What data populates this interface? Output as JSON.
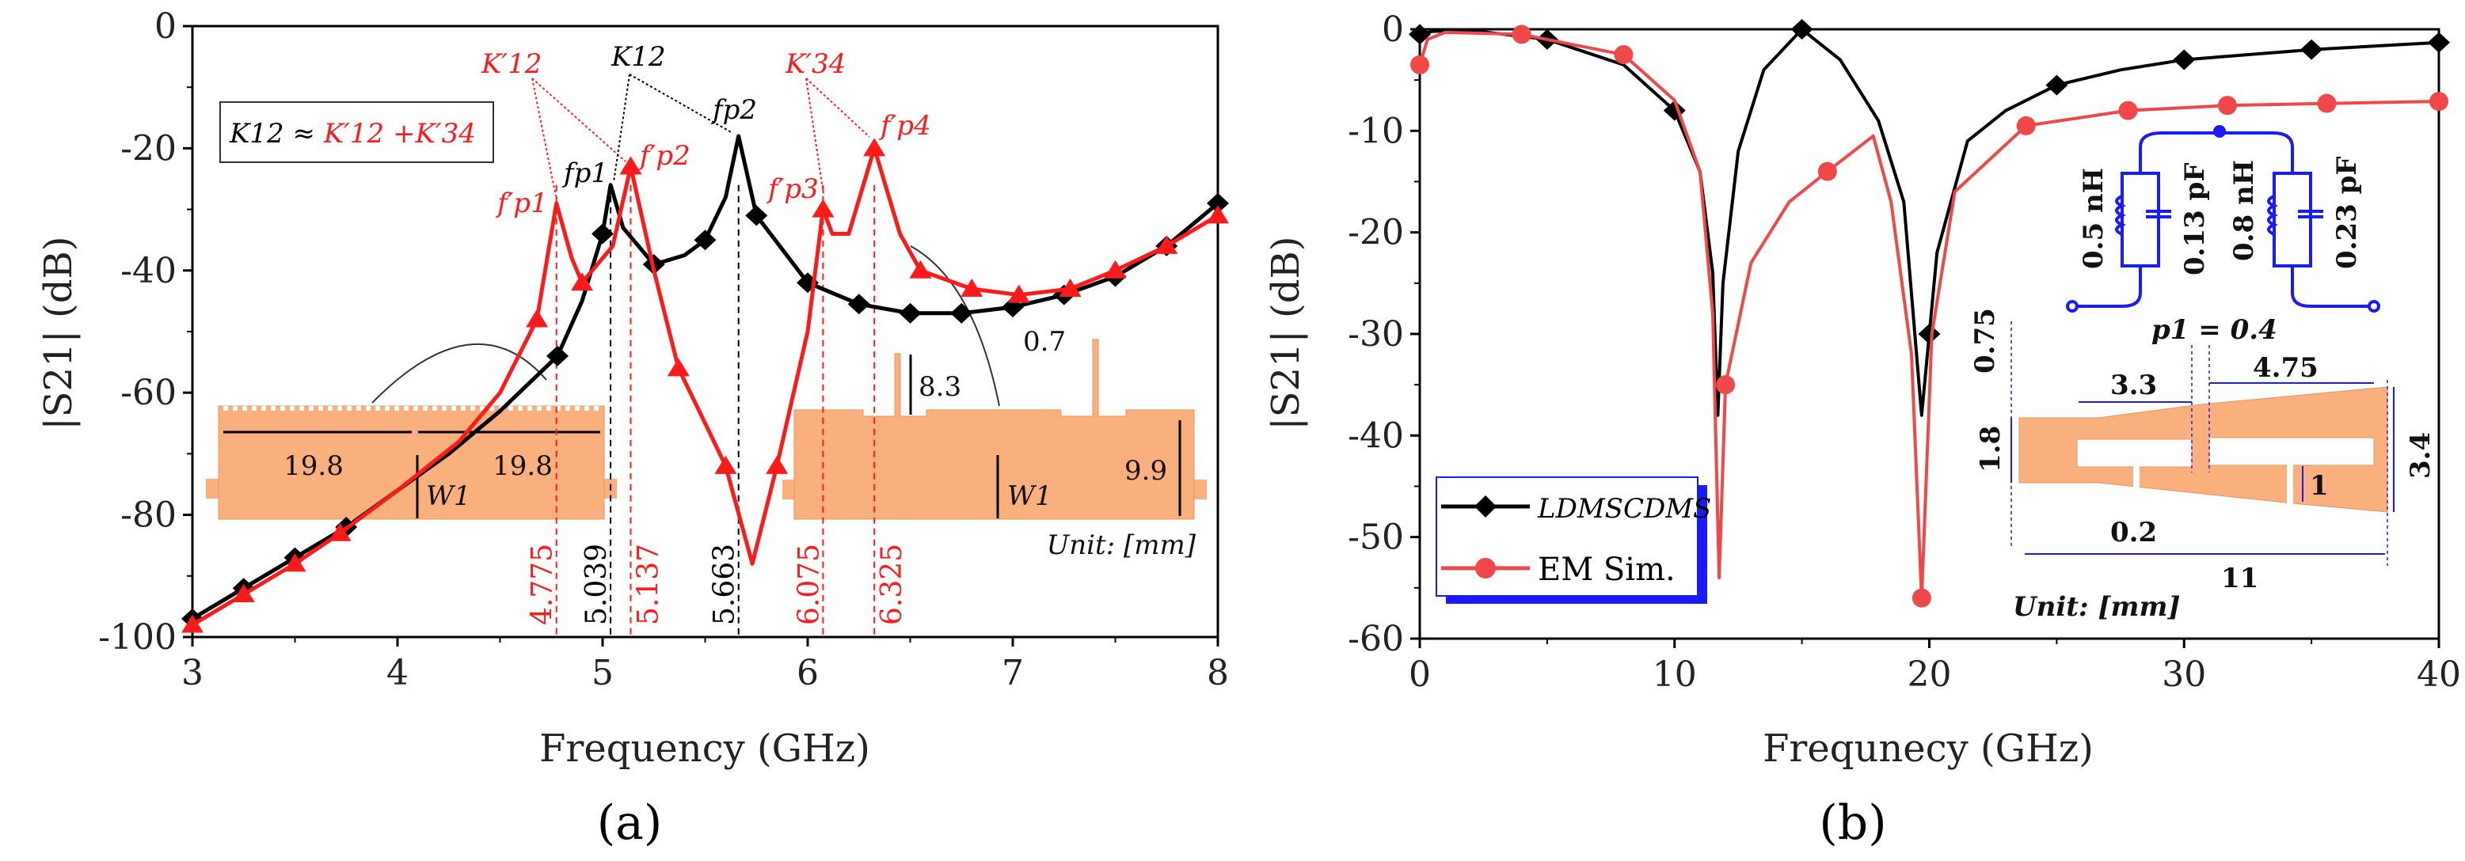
{
  "colors": {
    "black": "#000000",
    "red": "#ff1a1a",
    "em_red": "#f04848",
    "copper": "#f9b07c",
    "blue": "#1a1aff"
  },
  "chart_data": [
    {
      "type": "line",
      "caption": "(a)",
      "xlabel": "Frequency (GHz)",
      "ylabel": "|S21| (dB)",
      "xlim": [
        3,
        8
      ],
      "ylim": [
        -100,
        0
      ],
      "xticks": [
        "3",
        "4",
        "5",
        "6",
        "7",
        "8"
      ],
      "yticks": [
        "0",
        "-20",
        "-40",
        "-60",
        "-80",
        "-100"
      ],
      "series": [
        {
          "name": "black",
          "color": "#000000",
          "marker": "diamond",
          "x": [
            3,
            3.25,
            3.5,
            3.75,
            4,
            4.25,
            4.5,
            4.78,
            4.9,
            5,
            5.039,
            5.1,
            5.25,
            5.4,
            5.5,
            5.6,
            5.663,
            5.75,
            6,
            6.25,
            6.5,
            6.75,
            7,
            7.25,
            7.5,
            7.75,
            8
          ],
          "y": [
            -97,
            -92,
            -87,
            -82,
            -76,
            -70,
            -63,
            -54,
            -45,
            -34,
            -26,
            -33,
            -39,
            -37.5,
            -35,
            -28,
            -18,
            -31,
            -42,
            -45.5,
            -47,
            -47,
            -46,
            -44,
            -41,
            -36,
            -29
          ],
          "markers_x": [
            3,
            3.25,
            3.5,
            3.75,
            4.78,
            5,
            5.25,
            5.5,
            5.75,
            6,
            6.25,
            6.5,
            6.75,
            7,
            7.25,
            7.5,
            7.75,
            8
          ]
        },
        {
          "name": "red",
          "color": "#ff1a1a",
          "marker": "triangle",
          "x": [
            3,
            3.25,
            3.5,
            3.72,
            4,
            4.3,
            4.5,
            4.68,
            4.775,
            4.85,
            4.9,
            5.05,
            5.137,
            5.25,
            5.37,
            5.5,
            5.6,
            5.73,
            5.85,
            6,
            6.075,
            6.12,
            6.2,
            6.325,
            6.45,
            6.55,
            6.8,
            7.03,
            7.28,
            7.5,
            7.75,
            8
          ],
          "y": [
            -98,
            -93,
            -88,
            -83,
            -76,
            -68,
            -60,
            -48,
            -29,
            -38,
            -42,
            -36,
            -23,
            -40,
            -56,
            -65,
            -72,
            -88,
            -72,
            -50,
            -30,
            -34,
            -34,
            -20,
            -34,
            -40,
            -43,
            -44,
            -43,
            -40,
            -36,
            -31
          ],
          "markers_x": [
            3,
            3.25,
            3.5,
            3.72,
            4.68,
            4.9,
            5.137,
            5.37,
            5.6,
            5.85,
            6.075,
            6.325,
            6.55,
            6.8,
            7.03,
            7.28,
            7.5,
            7.75,
            8
          ]
        }
      ],
      "vlines": [
        {
          "x": 4.775,
          "label": "4.775",
          "color": "#ff1a1a"
        },
        {
          "x": 5.039,
          "label": "5.039",
          "color": "#000000"
        },
        {
          "x": 5.137,
          "label": "5.137",
          "color": "#ff1a1a"
        },
        {
          "x": 5.663,
          "label": "5.663",
          "color": "#000000"
        },
        {
          "x": 6.075,
          "label": "6.075",
          "color": "#ff1a1a"
        },
        {
          "x": 6.325,
          "label": "6.325",
          "color": "#ff1a1a"
        }
      ],
      "annotations": {
        "equation_lhs": "K12 ≈ ",
        "equation_rhs": "K′12 +K′34",
        "k12p": "K′12",
        "k12": "K12",
        "k34p": "K′34",
        "fp1": "fp1",
        "fp2": "fp2",
        "fp1p": "f′p1",
        "fp2p": "f′p2",
        "fp3p": "f′p3",
        "fp4p": "f′p4",
        "dim_left": "19.8",
        "dim_right": "19.8",
        "w1": "W1",
        "w1b": "W1",
        "d83": "8.3",
        "d07": "0.7",
        "d99": "9.9",
        "unit": "Unit: [mm]"
      }
    },
    {
      "type": "line",
      "caption": "(b)",
      "xlabel": "Frequnecy (GHz)",
      "ylabel": "|S21| (dB)",
      "xlim": [
        0,
        40
      ],
      "ylim": [
        -60,
        0
      ],
      "xticks": [
        "0",
        "10",
        "20",
        "30",
        "40"
      ],
      "yticks": [
        "0",
        "-10",
        "-20",
        "-30",
        "-40",
        "-50",
        "-60"
      ],
      "legend": {
        "position": "bottom-left",
        "entries": [
          "LDMSCDMS",
          "EM Sim."
        ]
      },
      "series": [
        {
          "name": "LDMSCDMS",
          "color": "#000000",
          "marker": "diamond",
          "x": [
            0,
            0.5,
            2,
            5,
            8,
            10,
            11,
            11.5,
            11.7,
            11.9,
            12.5,
            13.5,
            15,
            16.5,
            18,
            19,
            19.7,
            20.3,
            21.5,
            23,
            25,
            27.5,
            30,
            35,
            40
          ],
          "y": [
            -0.5,
            -0.2,
            -0.1,
            -1,
            -3.5,
            -8,
            -14,
            -24,
            -38,
            -25,
            -12,
            -4,
            0,
            -3,
            -9,
            -17,
            -38,
            -22,
            -11,
            -8,
            -5.5,
            -4,
            -3,
            -2,
            -1.3
          ],
          "markers_x": [
            0,
            5,
            10,
            15,
            20,
            25,
            30,
            35,
            40
          ]
        },
        {
          "name": "EM Sim.",
          "color": "#f04848",
          "marker": "circle",
          "x": [
            0,
            0.3,
            1,
            4,
            8,
            10,
            11,
            11.5,
            11.75,
            12,
            13,
            14.5,
            16,
            17.8,
            18.5,
            19.3,
            19.7,
            20.1,
            21,
            23.8,
            27.8,
            31.7,
            35.6,
            40
          ],
          "y": [
            -3.5,
            -1,
            -0.3,
            -0.5,
            -2.5,
            -7,
            -14,
            -28,
            -54,
            -35,
            -23,
            -17,
            -14,
            -10.5,
            -17,
            -32,
            -56,
            -30,
            -16,
            -9.5,
            -8,
            -7.5,
            -7.3,
            -7.1
          ],
          "markers_x": [
            0,
            4,
            8,
            12,
            16,
            19.7,
            23.8,
            27.8,
            31.7,
            35.6,
            40
          ]
        }
      ],
      "annotations": {
        "l1": "0.5 nH",
        "c1": "0.13 pF",
        "l2": "0.8 nH",
        "c2": "0.23 pF",
        "p1": "p1 = 0.4",
        "d075": "0.75",
        "d33": "3.3",
        "d475": "4.75",
        "d18": "1.8",
        "d1": "1",
        "d34": "3.4",
        "d02": "0.2",
        "d11": "11",
        "unit": "Unit: [mm]"
      }
    }
  ]
}
